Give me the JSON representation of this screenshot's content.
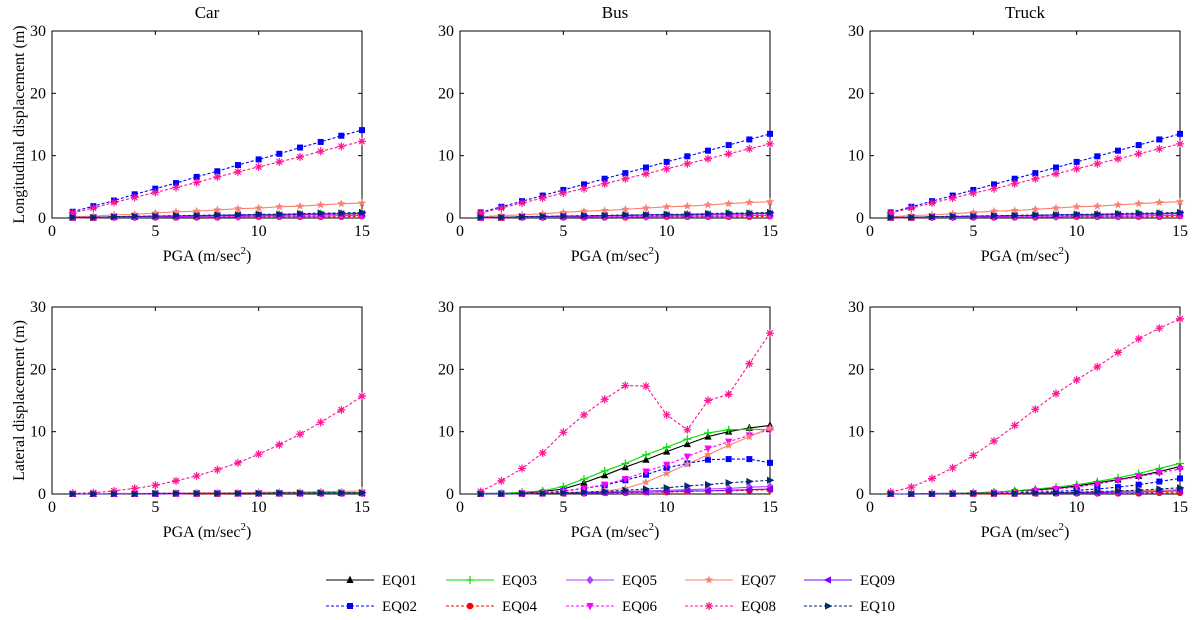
{
  "chart_data": {
    "type": "line",
    "panels": [
      {
        "title": "Car",
        "ylabel": "Longitudinal displacement (m)",
        "xlabel": "PGA (m/sec",
        "xlabel_sup": "2",
        "xlabel_tail": ")",
        "xlim": [
          0,
          15
        ],
        "ylim": [
          0,
          30
        ],
        "xticks": [
          "0",
          "5",
          "10",
          "15"
        ],
        "yticks": [
          "0",
          "10",
          "20",
          "30"
        ]
      },
      {
        "title": "Bus",
        "ylabel": "",
        "xlabel": "PGA (m/sec",
        "xlabel_sup": "2",
        "xlabel_tail": ")",
        "xlim": [
          0,
          15
        ],
        "ylim": [
          0,
          30
        ],
        "xticks": [
          "0",
          "5",
          "10",
          "15"
        ],
        "yticks": [
          "0",
          "10",
          "20",
          "30"
        ]
      },
      {
        "title": "Truck",
        "ylabel": "",
        "xlabel": "PGA (m/sec",
        "xlabel_sup": "2",
        "xlabel_tail": ")",
        "xlim": [
          0,
          15
        ],
        "ylim": [
          0,
          30
        ],
        "xticks": [
          "0",
          "5",
          "10",
          "15"
        ],
        "yticks": [
          "0",
          "10",
          "20",
          "30"
        ]
      },
      {
        "title": "",
        "ylabel": "Lateral displacement (m)",
        "xlabel": "PGA (m/sec",
        "xlabel_sup": "2",
        "xlabel_tail": ")",
        "xlim": [
          0,
          15
        ],
        "ylim": [
          0,
          30
        ],
        "xticks": [
          "0",
          "5",
          "10",
          "15"
        ],
        "yticks": [
          "0",
          "10",
          "20",
          "30"
        ]
      },
      {
        "title": "",
        "ylabel": "",
        "xlabel": "PGA (m/sec",
        "xlabel_sup": "2",
        "xlabel_tail": ")",
        "xlim": [
          0,
          15
        ],
        "ylim": [
          0,
          30
        ],
        "xticks": [
          "0",
          "5",
          "10",
          "15"
        ],
        "yticks": [
          "0",
          "10",
          "20",
          "30"
        ]
      },
      {
        "title": "",
        "ylabel": "",
        "xlabel": "PGA (m/sec",
        "xlabel_sup": "2",
        "xlabel_tail": ")",
        "xlim": [
          0,
          15
        ],
        "ylim": [
          0,
          30
        ],
        "xticks": [
          "0",
          "5",
          "10",
          "15"
        ],
        "yticks": [
          "0",
          "10",
          "20",
          "30"
        ]
      }
    ],
    "x": [
      1,
      2,
      3,
      4,
      5,
      6,
      7,
      8,
      9,
      10,
      11,
      12,
      13,
      14,
      15
    ],
    "series_styles": [
      {
        "name": "EQ01",
        "color": "#000000",
        "dash": false,
        "marker": "triangle-up"
      },
      {
        "name": "EQ02",
        "color": "#0000ff",
        "dash": true,
        "marker": "square"
      },
      {
        "name": "EQ03",
        "color": "#00dd00",
        "dash": false,
        "marker": "plus"
      },
      {
        "name": "EQ04",
        "color": "#ff0000",
        "dash": true,
        "marker": "circle"
      },
      {
        "name": "EQ05",
        "color": "#b040ff",
        "dash": false,
        "marker": "diamond"
      },
      {
        "name": "EQ06",
        "color": "#ff00ff",
        "dash": true,
        "marker": "triangle-down"
      },
      {
        "name": "EQ07",
        "color": "#fa8072",
        "dash": false,
        "marker": "star"
      },
      {
        "name": "EQ08",
        "color": "#ff1493",
        "dash": true,
        "marker": "asterisk"
      },
      {
        "name": "EQ09",
        "color": "#8000ff",
        "dash": false,
        "marker": "triangle-left"
      },
      {
        "name": "EQ10",
        "color": "#002a70",
        "dash": true,
        "marker": "triangle-right"
      }
    ],
    "values": [
      [
        [
          0.1,
          0.1,
          0.2,
          0.2,
          0.3,
          0.3,
          0.3,
          0.4,
          0.4,
          0.5,
          0.5,
          0.6,
          0.6,
          0.7,
          0.7
        ],
        [
          1.0,
          1.9,
          2.8,
          3.8,
          4.7,
          5.6,
          6.6,
          7.5,
          8.5,
          9.4,
          10.3,
          11.3,
          12.2,
          13.2,
          14.1
        ],
        [
          0.1,
          0.1,
          0.2,
          0.2,
          0.3,
          0.3,
          0.4,
          0.4,
          0.5,
          0.5,
          0.6,
          0.6,
          0.7,
          0.7,
          0.8
        ],
        [
          0.0,
          0.0,
          0.1,
          0.1,
          0.1,
          0.1,
          0.1,
          0.1,
          0.2,
          0.2,
          0.2,
          0.2,
          0.2,
          0.2,
          0.3
        ],
        [
          0.0,
          0.1,
          0.1,
          0.1,
          0.1,
          0.2,
          0.2,
          0.2,
          0.2,
          0.3,
          0.3,
          0.3,
          0.3,
          0.4,
          0.4
        ],
        [
          0.0,
          0.1,
          0.1,
          0.2,
          0.2,
          0.2,
          0.3,
          0.3,
          0.3,
          0.4,
          0.4,
          0.4,
          0.5,
          0.5,
          0.5
        ],
        [
          0.2,
          0.3,
          0.5,
          0.6,
          0.8,
          1.0,
          1.1,
          1.3,
          1.5,
          1.6,
          1.8,
          1.9,
          2.1,
          2.3,
          2.4
        ],
        [
          0.8,
          1.6,
          2.5,
          3.3,
          4.1,
          4.9,
          5.7,
          6.6,
          7.4,
          8.2,
          9.0,
          9.8,
          10.7,
          11.5,
          12.3
        ],
        [
          0.1,
          0.1,
          0.2,
          0.2,
          0.3,
          0.3,
          0.4,
          0.4,
          0.5,
          0.5,
          0.5,
          0.6,
          0.6,
          0.7,
          0.7
        ],
        [
          0.1,
          0.1,
          0.2,
          0.3,
          0.3,
          0.4,
          0.4,
          0.5,
          0.5,
          0.6,
          0.6,
          0.7,
          0.8,
          0.8,
          0.9
        ]
      ],
      [
        [
          0.1,
          0.1,
          0.2,
          0.2,
          0.3,
          0.3,
          0.4,
          0.4,
          0.5,
          0.5,
          0.6,
          0.6,
          0.7,
          0.7,
          0.8
        ],
        [
          0.9,
          1.8,
          2.7,
          3.6,
          4.5,
          5.4,
          6.3,
          7.2,
          8.1,
          9.0,
          9.9,
          10.8,
          11.7,
          12.6,
          13.5
        ],
        [
          0.1,
          0.1,
          0.2,
          0.2,
          0.3,
          0.3,
          0.4,
          0.4,
          0.5,
          0.5,
          0.6,
          0.6,
          0.7,
          0.7,
          0.8
        ],
        [
          0.0,
          0.0,
          0.1,
          0.1,
          0.1,
          0.1,
          0.1,
          0.1,
          0.2,
          0.2,
          0.2,
          0.2,
          0.2,
          0.2,
          0.3
        ],
        [
          0.0,
          0.1,
          0.1,
          0.1,
          0.1,
          0.2,
          0.2,
          0.2,
          0.2,
          0.3,
          0.3,
          0.3,
          0.3,
          0.4,
          0.4
        ],
        [
          0.0,
          0.1,
          0.1,
          0.2,
          0.2,
          0.2,
          0.3,
          0.3,
          0.3,
          0.4,
          0.4,
          0.4,
          0.5,
          0.5,
          0.5
        ],
        [
          0.2,
          0.4,
          0.5,
          0.7,
          0.9,
          1.1,
          1.2,
          1.4,
          1.6,
          1.8,
          1.9,
          2.1,
          2.3,
          2.5,
          2.6
        ],
        [
          0.8,
          1.6,
          2.4,
          3.2,
          4.0,
          4.7,
          5.5,
          6.3,
          7.1,
          7.9,
          8.7,
          9.5,
          10.3,
          11.1,
          11.9
        ],
        [
          0.1,
          0.1,
          0.2,
          0.2,
          0.3,
          0.3,
          0.4,
          0.4,
          0.5,
          0.5,
          0.5,
          0.6,
          0.6,
          0.7,
          0.7
        ],
        [
          0.1,
          0.1,
          0.2,
          0.3,
          0.3,
          0.4,
          0.4,
          0.5,
          0.5,
          0.6,
          0.6,
          0.7,
          0.8,
          0.8,
          0.9
        ]
      ],
      [
        [
          0.1,
          0.1,
          0.2,
          0.2,
          0.3,
          0.3,
          0.4,
          0.4,
          0.5,
          0.5,
          0.6,
          0.6,
          0.7,
          0.7,
          0.8
        ],
        [
          0.9,
          1.8,
          2.7,
          3.6,
          4.5,
          5.4,
          6.3,
          7.2,
          8.1,
          9.0,
          9.9,
          10.8,
          11.7,
          12.6,
          13.5
        ],
        [
          0.1,
          0.1,
          0.2,
          0.2,
          0.3,
          0.3,
          0.4,
          0.4,
          0.5,
          0.5,
          0.6,
          0.6,
          0.7,
          0.7,
          0.8
        ],
        [
          0.0,
          0.0,
          0.1,
          0.1,
          0.1,
          0.1,
          0.1,
          0.1,
          0.2,
          0.2,
          0.2,
          0.2,
          0.2,
          0.2,
          0.3
        ],
        [
          0.0,
          0.1,
          0.1,
          0.1,
          0.1,
          0.2,
          0.2,
          0.2,
          0.2,
          0.3,
          0.3,
          0.3,
          0.3,
          0.4,
          0.4
        ],
        [
          0.0,
          0.1,
          0.1,
          0.2,
          0.2,
          0.2,
          0.3,
          0.3,
          0.3,
          0.4,
          0.4,
          0.4,
          0.5,
          0.5,
          0.5
        ],
        [
          0.2,
          0.4,
          0.5,
          0.7,
          0.9,
          1.1,
          1.2,
          1.4,
          1.6,
          1.8,
          1.9,
          2.1,
          2.3,
          2.5,
          2.6
        ],
        [
          0.8,
          1.6,
          2.4,
          3.2,
          4.0,
          4.7,
          5.5,
          6.3,
          7.1,
          7.9,
          8.7,
          9.5,
          10.3,
          11.1,
          11.9
        ],
        [
          0.1,
          0.1,
          0.2,
          0.2,
          0.3,
          0.3,
          0.4,
          0.4,
          0.5,
          0.5,
          0.5,
          0.6,
          0.6,
          0.7,
          0.7
        ],
        [
          0.1,
          0.1,
          0.2,
          0.3,
          0.3,
          0.4,
          0.4,
          0.5,
          0.5,
          0.6,
          0.6,
          0.7,
          0.8,
          0.8,
          0.9
        ]
      ],
      [
        [
          0.0,
          0.0,
          0.0,
          0.0,
          0.1,
          0.1,
          0.1,
          0.1,
          0.1,
          0.1,
          0.1,
          0.2,
          0.2,
          0.2,
          0.2
        ],
        [
          0.0,
          0.0,
          0.0,
          0.0,
          0.1,
          0.1,
          0.1,
          0.1,
          0.1,
          0.1,
          0.1,
          0.1,
          0.2,
          0.2,
          0.2
        ],
        [
          0.0,
          0.0,
          0.0,
          0.0,
          0.1,
          0.1,
          0.1,
          0.1,
          0.1,
          0.1,
          0.2,
          0.2,
          0.2,
          0.2,
          0.2
        ],
        [
          0.0,
          0.0,
          0.0,
          0.0,
          0.0,
          0.0,
          0.0,
          0.0,
          0.1,
          0.1,
          0.1,
          0.1,
          0.1,
          0.1,
          0.1
        ],
        [
          0.0,
          0.0,
          0.0,
          0.0,
          0.0,
          0.0,
          0.1,
          0.1,
          0.1,
          0.1,
          0.1,
          0.1,
          0.1,
          0.1,
          0.1
        ],
        [
          0.0,
          0.0,
          0.0,
          0.0,
          0.0,
          0.1,
          0.1,
          0.1,
          0.1,
          0.1,
          0.1,
          0.1,
          0.1,
          0.2,
          0.2
        ],
        [
          0.0,
          0.0,
          0.1,
          0.1,
          0.1,
          0.1,
          0.2,
          0.2,
          0.2,
          0.3,
          0.3,
          0.3,
          0.4,
          0.4,
          0.5
        ],
        [
          0.1,
          0.2,
          0.5,
          0.9,
          1.4,
          2.1,
          2.9,
          3.9,
          5.0,
          6.4,
          7.9,
          9.6,
          11.5,
          13.5,
          15.7
        ],
        [
          0.0,
          0.0,
          0.0,
          0.0,
          0.0,
          0.1,
          0.1,
          0.1,
          0.1,
          0.1,
          0.1,
          0.1,
          0.1,
          0.1,
          0.1
        ],
        [
          0.0,
          0.0,
          0.0,
          0.0,
          0.1,
          0.1,
          0.1,
          0.1,
          0.1,
          0.1,
          0.2,
          0.2,
          0.2,
          0.2,
          0.2
        ]
      ],
      [
        [
          0.1,
          0.1,
          0.2,
          0.4,
          0.8,
          1.8,
          3.0,
          4.3,
          5.5,
          6.8,
          8.0,
          9.2,
          10.0,
          10.6,
          11.0
        ],
        [
          0.0,
          0.1,
          0.1,
          0.2,
          0.5,
          0.9,
          1.4,
          2.2,
          3.1,
          4.2,
          4.9,
          5.5,
          5.6,
          5.6,
          5.0
        ],
        [
          0.1,
          0.1,
          0.3,
          0.5,
          1.2,
          2.4,
          3.7,
          4.9,
          6.3,
          7.5,
          8.8,
          9.8,
          10.3,
          10.4,
          10.3
        ],
        [
          0.0,
          0.0,
          0.0,
          0.1,
          0.1,
          0.1,
          0.2,
          0.2,
          0.3,
          0.3,
          0.4,
          0.5,
          0.5,
          0.6,
          0.7
        ],
        [
          0.0,
          0.0,
          0.1,
          0.1,
          0.2,
          0.2,
          0.3,
          0.4,
          0.5,
          0.6,
          0.7,
          0.8,
          0.9,
          1.1,
          1.2
        ],
        [
          0.0,
          0.0,
          0.1,
          0.2,
          0.4,
          0.9,
          1.5,
          2.4,
          3.6,
          4.7,
          6.0,
          7.3,
          8.4,
          9.4,
          10.3
        ],
        [
          0.0,
          0.0,
          0.0,
          0.1,
          0.2,
          0.3,
          0.5,
          0.9,
          1.9,
          3.3,
          4.8,
          6.3,
          7.8,
          9.2,
          10.6
        ],
        [
          0.4,
          2.1,
          4.1,
          6.6,
          9.9,
          12.7,
          15.2,
          17.4,
          17.3,
          12.7,
          10.3,
          15.0,
          16.0,
          20.9,
          25.8
        ],
        [
          0.0,
          0.0,
          0.0,
          0.1,
          0.1,
          0.2,
          0.2,
          0.3,
          0.3,
          0.4,
          0.5,
          0.5,
          0.6,
          0.7,
          0.8
        ],
        [
          0.0,
          0.0,
          0.1,
          0.1,
          0.2,
          0.3,
          0.4,
          0.6,
          0.8,
          1.0,
          1.3,
          1.5,
          1.8,
          2.0,
          2.2
        ]
      ],
      [
        [
          0.0,
          0.0,
          0.1,
          0.1,
          0.2,
          0.3,
          0.5,
          0.7,
          0.9,
          1.3,
          1.8,
          2.3,
          2.9,
          3.6,
          4.4
        ],
        [
          0.0,
          0.0,
          0.0,
          0.1,
          0.1,
          0.1,
          0.2,
          0.3,
          0.4,
          0.6,
          0.8,
          1.1,
          1.5,
          2.0,
          2.5
        ],
        [
          0.0,
          0.0,
          0.1,
          0.1,
          0.2,
          0.3,
          0.5,
          0.8,
          1.1,
          1.5,
          2.0,
          2.6,
          3.3,
          4.1,
          4.9
        ],
        [
          0.0,
          0.0,
          0.0,
          0.0,
          0.0,
          0.0,
          0.0,
          0.1,
          0.1,
          0.1,
          0.1,
          0.1,
          0.1,
          0.2,
          0.2
        ],
        [
          0.0,
          0.0,
          0.0,
          0.0,
          0.1,
          0.1,
          0.1,
          0.2,
          0.2,
          0.3,
          0.3,
          0.4,
          0.5,
          0.6,
          0.7
        ],
        [
          0.0,
          0.0,
          0.0,
          0.1,
          0.1,
          0.2,
          0.3,
          0.5,
          0.8,
          1.1,
          1.6,
          2.2,
          2.8,
          3.4,
          4.0
        ],
        [
          0.0,
          0.0,
          0.0,
          0.0,
          0.1,
          0.1,
          0.1,
          0.2,
          0.2,
          0.3,
          0.3,
          0.4,
          0.5,
          0.6,
          0.7
        ],
        [
          0.3,
          1.1,
          2.5,
          4.2,
          6.2,
          8.5,
          11.0,
          13.6,
          16.1,
          18.3,
          20.4,
          22.7,
          24.9,
          26.6,
          28.1
        ],
        [
          0.0,
          0.0,
          0.0,
          0.0,
          0.1,
          0.1,
          0.1,
          0.1,
          0.2,
          0.2,
          0.2,
          0.3,
          0.3,
          0.4,
          0.5
        ],
        [
          0.0,
          0.0,
          0.0,
          0.0,
          0.1,
          0.1,
          0.1,
          0.2,
          0.2,
          0.3,
          0.4,
          0.5,
          0.6,
          0.8,
          1.0
        ]
      ]
    ]
  }
}
